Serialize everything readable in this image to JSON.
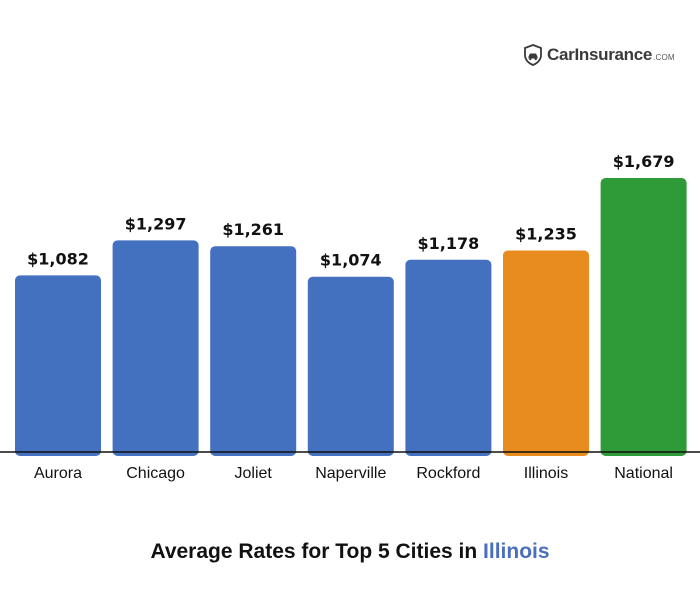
{
  "brand": {
    "name": "CarInsurance",
    "suffix": ".COM"
  },
  "chart_data": {
    "type": "bar",
    "title_main": "Average Rates for Top 5 Cities in",
    "title_highlight": "Illinois",
    "categories": [
      "Aurora",
      "Chicago",
      "Joliet",
      "Naperville",
      "Rockford",
      "Illinois",
      "National"
    ],
    "values": [
      1082,
      1297,
      1261,
      1074,
      1178,
      1235,
      1679
    ],
    "value_labels": [
      "$1,082",
      "$1,297",
      "$1,261",
      "$1,074",
      "$1,178",
      "$1,235",
      "$1,679"
    ],
    "bar_colors": [
      "#4470c0",
      "#4470c0",
      "#4470c0",
      "#4470c0",
      "#4470c0",
      "#e88c20",
      "#2f9b38"
    ],
    "xlabel": "",
    "ylabel": "",
    "ylim": [
      0,
      1700
    ],
    "grid": false
  }
}
